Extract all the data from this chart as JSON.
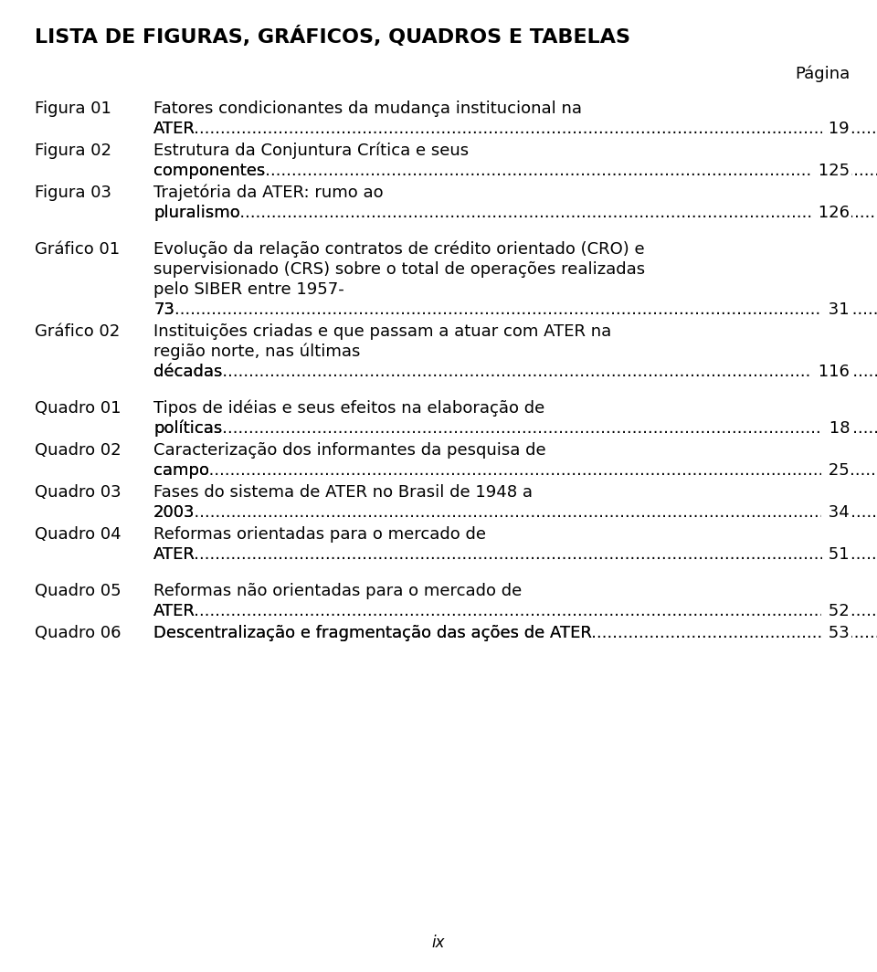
{
  "title": "LISTA DE FIGURAS, GRÁFICOS, QUADROS E TABELAS",
  "pagina_label": "Página",
  "background_color": "#ffffff",
  "text_color": "#000000",
  "entries": [
    {
      "label": "Figura 01",
      "text_lines": [
        "Fatores condicionantes da mudança institucional na",
        "ATER"
      ],
      "page": "19",
      "extra_space_before": false
    },
    {
      "label": "Figura 02",
      "text_lines": [
        "Estrutura da Conjuntura Crítica e seus",
        "componentes"
      ],
      "page": "125",
      "extra_space_before": false
    },
    {
      "label": "Figura 03",
      "text_lines": [
        "Trajetória da ATER: rumo ao",
        "pluralismo"
      ],
      "page": "126",
      "extra_space_before": false
    },
    {
      "label": "Gráfico 01",
      "text_lines": [
        "Evolução da relação contratos de crédito orientado (CRO) e",
        "supervisionado (CRS) sobre o total de operações realizadas",
        "pelo SIBER entre 1957-",
        "73"
      ],
      "page": "31",
      "extra_space_before": true
    },
    {
      "label": "Gráfico 02",
      "text_lines": [
        "Instituições criadas e que passam a atuar com ATER na",
        "região norte, nas últimas",
        "décadas"
      ],
      "page": "116",
      "extra_space_before": false
    },
    {
      "label": "Quadro 01",
      "text_lines": [
        "Tipos de idéias e seus efeitos na elaboração de",
        "políticas"
      ],
      "page": "18",
      "extra_space_before": true
    },
    {
      "label": "Quadro 02",
      "text_lines": [
        "Caracterização dos informantes da pesquisa de",
        "campo"
      ],
      "page": "25",
      "extra_space_before": false
    },
    {
      "label": "Quadro 03",
      "text_lines": [
        "Fases do sistema de ATER no Brasil de 1948 a",
        "2003"
      ],
      "page": "34",
      "extra_space_before": false
    },
    {
      "label": "Quadro 04",
      "text_lines": [
        "Reformas orientadas para o mercado de",
        "ATER"
      ],
      "page": "51",
      "extra_space_before": false
    },
    {
      "label": "Quadro 05",
      "text_lines": [
        "Reformas não orientadas para o mercado de",
        "ATER"
      ],
      "page": "52",
      "extra_space_before": true
    },
    {
      "label": "Quadro 06",
      "text_lines": [
        "Descentralização e fragmentação das ações de ATER"
      ],
      "page": "53",
      "extra_space_before": false
    }
  ],
  "footer": "ix",
  "title_fontsize": 16,
  "body_fontsize": 13,
  "pagina_fontsize": 13,
  "footer_fontsize": 12
}
